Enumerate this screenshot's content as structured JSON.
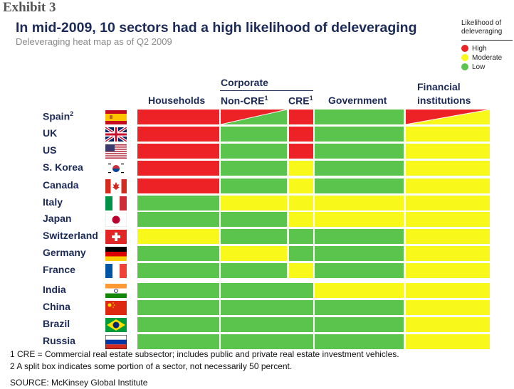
{
  "header": {
    "exhibit": "Exhibit 3",
    "title": "In mid-2009, 10 sectors had a high likelihood of deleveraging",
    "subtitle": "Deleveraging heat map as of Q2 2009"
  },
  "legend": {
    "title": "Likelihood of deleveraging",
    "items": [
      {
        "label": "High",
        "color": "#ec2227"
      },
      {
        "label": "Moderate",
        "color": "#f8f81a"
      },
      {
        "label": "Low",
        "color": "#5bc44d"
      }
    ]
  },
  "columns": {
    "households": "Households",
    "corporate": "Corporate",
    "non_cre": "Non-CRE",
    "non_cre_sup": "1",
    "cre": "CRE",
    "cre_sup": "1",
    "government": "Government",
    "financial_line1": "Financial",
    "financial_line2": "institutions"
  },
  "chart_data": {
    "type": "heatmap",
    "title": "In mid-2009, 10 sectors had a high likelihood of deleveraging",
    "subtitle": "Deleveraging heat map as of Q2 2009",
    "columns": [
      "Households",
      "Corporate Non-CRE",
      "Corporate CRE",
      "Government",
      "Financial institutions"
    ],
    "levels": {
      "H": "High",
      "M": "Moderate",
      "L": "Low"
    },
    "colors": {
      "H": "#ec2227",
      "M": "#f8f81a",
      "L": "#5bc44d"
    },
    "legend_position": "top-right",
    "rows": [
      {
        "country": "Spain",
        "sup": "2",
        "flag": "spain-flag",
        "cells": [
          "H",
          "H/L",
          "H",
          "L",
          "H/M"
        ]
      },
      {
        "country": "UK",
        "sup": "",
        "flag": "uk-flag",
        "cells": [
          "H",
          "L",
          "H",
          "L",
          "M"
        ]
      },
      {
        "country": "US",
        "sup": "",
        "flag": "us-flag",
        "cells": [
          "H",
          "L",
          "H",
          "L",
          "M"
        ]
      },
      {
        "country": "S. Korea",
        "sup": "",
        "flag": "south-korea-flag",
        "cells": [
          "H",
          "L",
          "M",
          "L",
          "M"
        ]
      },
      {
        "country": "Canada",
        "sup": "",
        "flag": "canada-flag",
        "cells": [
          "H",
          "L",
          "M",
          "L",
          "M"
        ]
      },
      {
        "country": "Italy",
        "sup": "",
        "flag": "italy-flag",
        "cells": [
          "L",
          "M",
          "M",
          "M",
          "M"
        ]
      },
      {
        "country": "Japan",
        "sup": "",
        "flag": "japan-flag",
        "cells": [
          "L",
          "L",
          "M",
          "M",
          "M"
        ]
      },
      {
        "country": "Switzerland",
        "sup": "",
        "flag": "switzerland-flag",
        "cells": [
          "M",
          "L",
          "L",
          "L",
          "M"
        ]
      },
      {
        "country": "Germany",
        "sup": "",
        "flag": "germany-flag",
        "cells": [
          "L",
          "M",
          "L",
          "L",
          "M"
        ]
      },
      {
        "country": "France",
        "sup": "",
        "flag": "france-flag",
        "cells": [
          "L",
          "L",
          "M",
          "L",
          "M"
        ]
      },
      {
        "country": "India",
        "sup": "",
        "flag": "india-flag",
        "corporate_merged": true,
        "cells": [
          "L",
          "L",
          "L",
          "M",
          "M"
        ]
      },
      {
        "country": "China",
        "sup": "",
        "flag": "china-flag",
        "corporate_merged": true,
        "cells": [
          "L",
          "L",
          "L",
          "L",
          "M"
        ]
      },
      {
        "country": "Brazil",
        "sup": "",
        "flag": "brazil-flag",
        "corporate_merged": true,
        "cells": [
          "L",
          "L",
          "L",
          "L",
          "M"
        ]
      },
      {
        "country": "Russia",
        "sup": "",
        "flag": "russia-flag",
        "corporate_merged": true,
        "cells": [
          "L",
          "L",
          "L",
          "L",
          "M"
        ]
      }
    ]
  },
  "footnotes": {
    "note1": "1 CRE = Commercial real estate subsector; includes public and private real estate investment vehicles.",
    "note2": "2 A split box indicates some portion of a sector, not necessarily 50 percent.",
    "source": "SOURCE: McKinsey Global Institute"
  }
}
